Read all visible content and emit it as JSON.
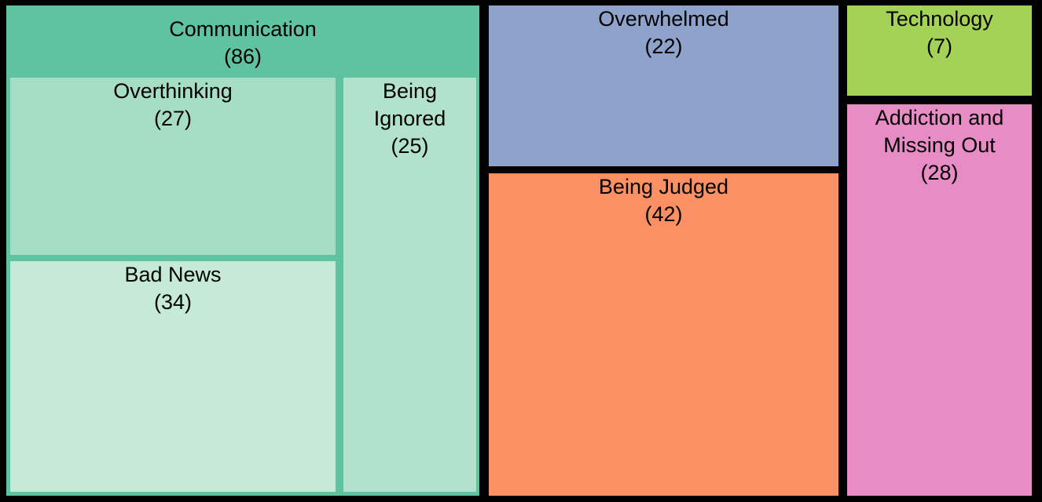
{
  "chart_data": {
    "type": "treemap",
    "title": "",
    "legend": "none",
    "nodes": [
      {
        "label": "Communication",
        "value": 86,
        "color": "#5fc2a1",
        "children": [
          {
            "label": "Overthinking",
            "value": 27,
            "color": "#a6ddc5"
          },
          {
            "label": "Bad News",
            "value": 34,
            "color": "#c5ead7"
          },
          {
            "label": "Being Ignored",
            "value": 25,
            "color": "#b2e2cd"
          }
        ]
      },
      {
        "label": "Overwhelmed",
        "value": 22,
        "color": "#8fa2cb"
      },
      {
        "label": "Being Judged",
        "value": 42,
        "color": "#fa9064"
      },
      {
        "label": "Technology",
        "value": 7,
        "color": "#a4d256"
      },
      {
        "label": "Addiction and Missing Out",
        "value": 28,
        "color": "#e88cc5"
      }
    ],
    "gutter_color": "#000000",
    "text_color": "#000000"
  },
  "tiles": {
    "communication": {
      "label": "Communication",
      "count": "(86)"
    },
    "overthinking": {
      "label": "Overthinking",
      "count": "(27)"
    },
    "bad_news": {
      "label": "Bad News",
      "count": "(34)"
    },
    "being_ignored": {
      "label": "Being Ignored",
      "count": "(25)"
    },
    "overwhelmed": {
      "label": "Overwhelmed",
      "count": "(22)"
    },
    "being_judged": {
      "label": "Being Judged",
      "count": "(42)"
    },
    "technology": {
      "label": "Technology",
      "count": "(7)"
    },
    "addiction": {
      "label": "Addiction and Missing Out",
      "count": "(28)"
    }
  },
  "colors": {
    "communication": "#5fc2a1",
    "overthinking": "#a6ddc5",
    "bad_news": "#c5ead7",
    "being_ignored": "#b2e2cd",
    "overwhelmed": "#8fa2cb",
    "being_judged": "#fa9064",
    "technology": "#a4d256",
    "addiction": "#e88cc5",
    "background": "#000000"
  }
}
